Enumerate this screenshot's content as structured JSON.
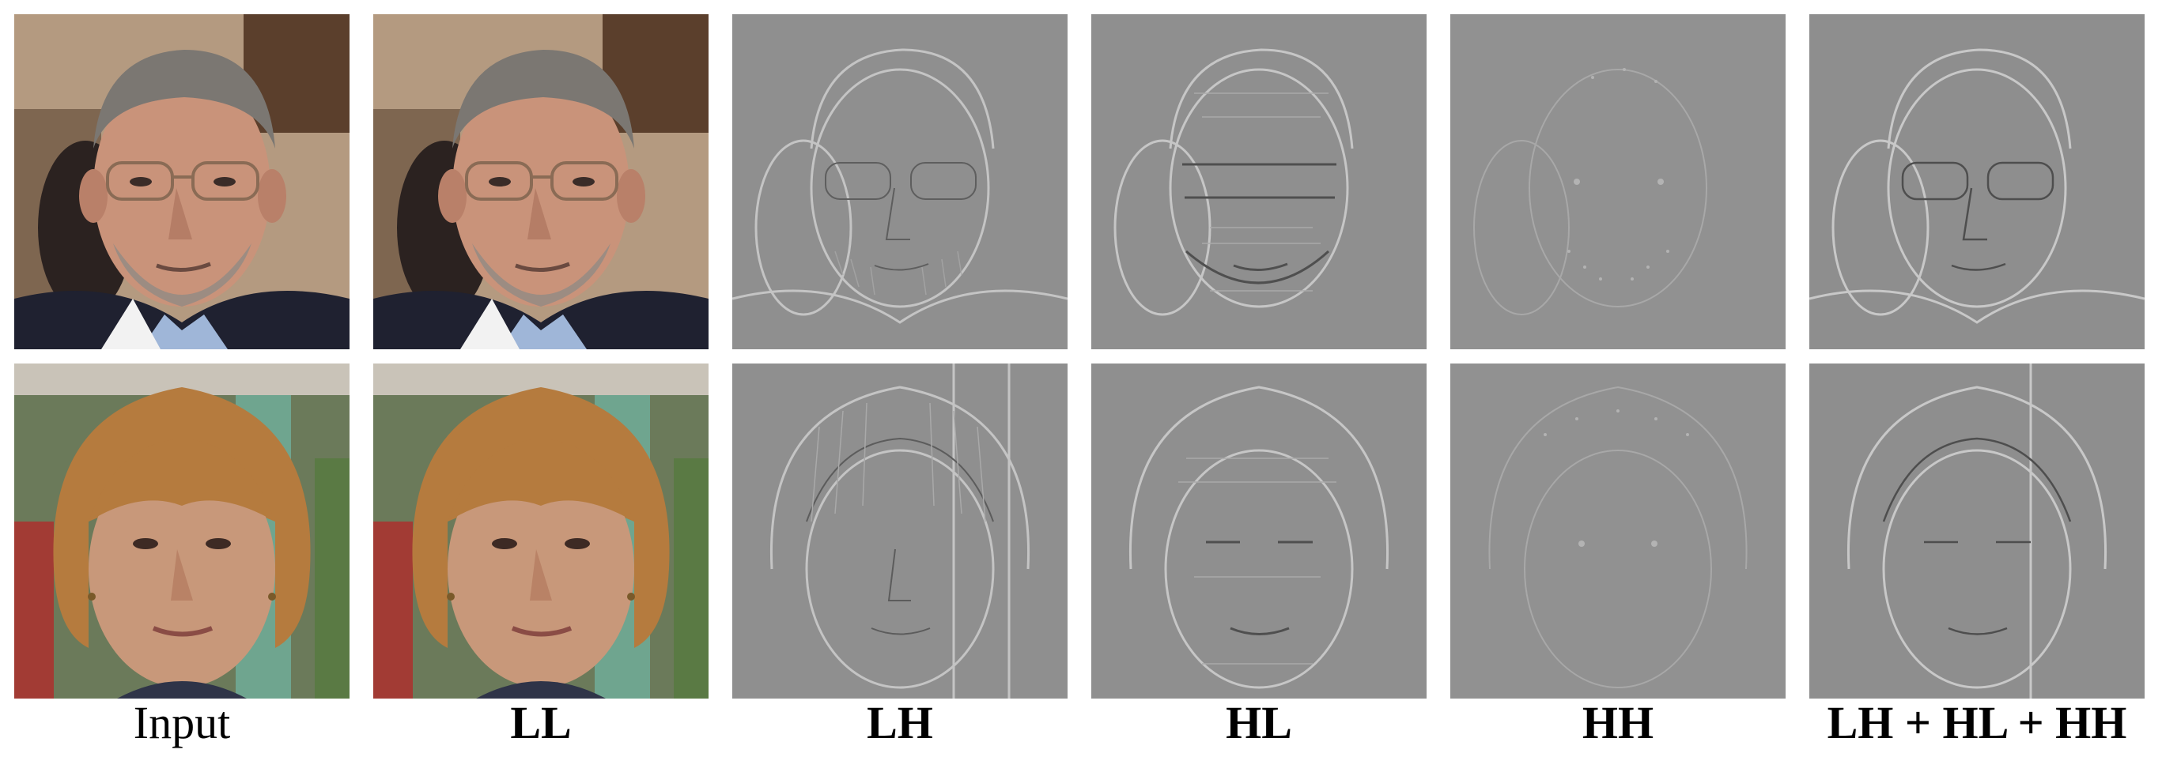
{
  "figure": {
    "columns": [
      {
        "id": "input",
        "label": "Input",
        "bold": false
      },
      {
        "id": "ll",
        "label": "LL",
        "bold": true
      },
      {
        "id": "lh",
        "label": "LH",
        "bold": true
      },
      {
        "id": "hl",
        "label": "HL",
        "bold": true
      },
      {
        "id": "hh",
        "label": "HH",
        "bold": true
      },
      {
        "id": "sum",
        "label": "LH + HL + HH",
        "bold": true
      }
    ],
    "rows": [
      {
        "subject": "man-with-glasses"
      },
      {
        "subject": "woman-with-bob-haircut"
      }
    ]
  }
}
